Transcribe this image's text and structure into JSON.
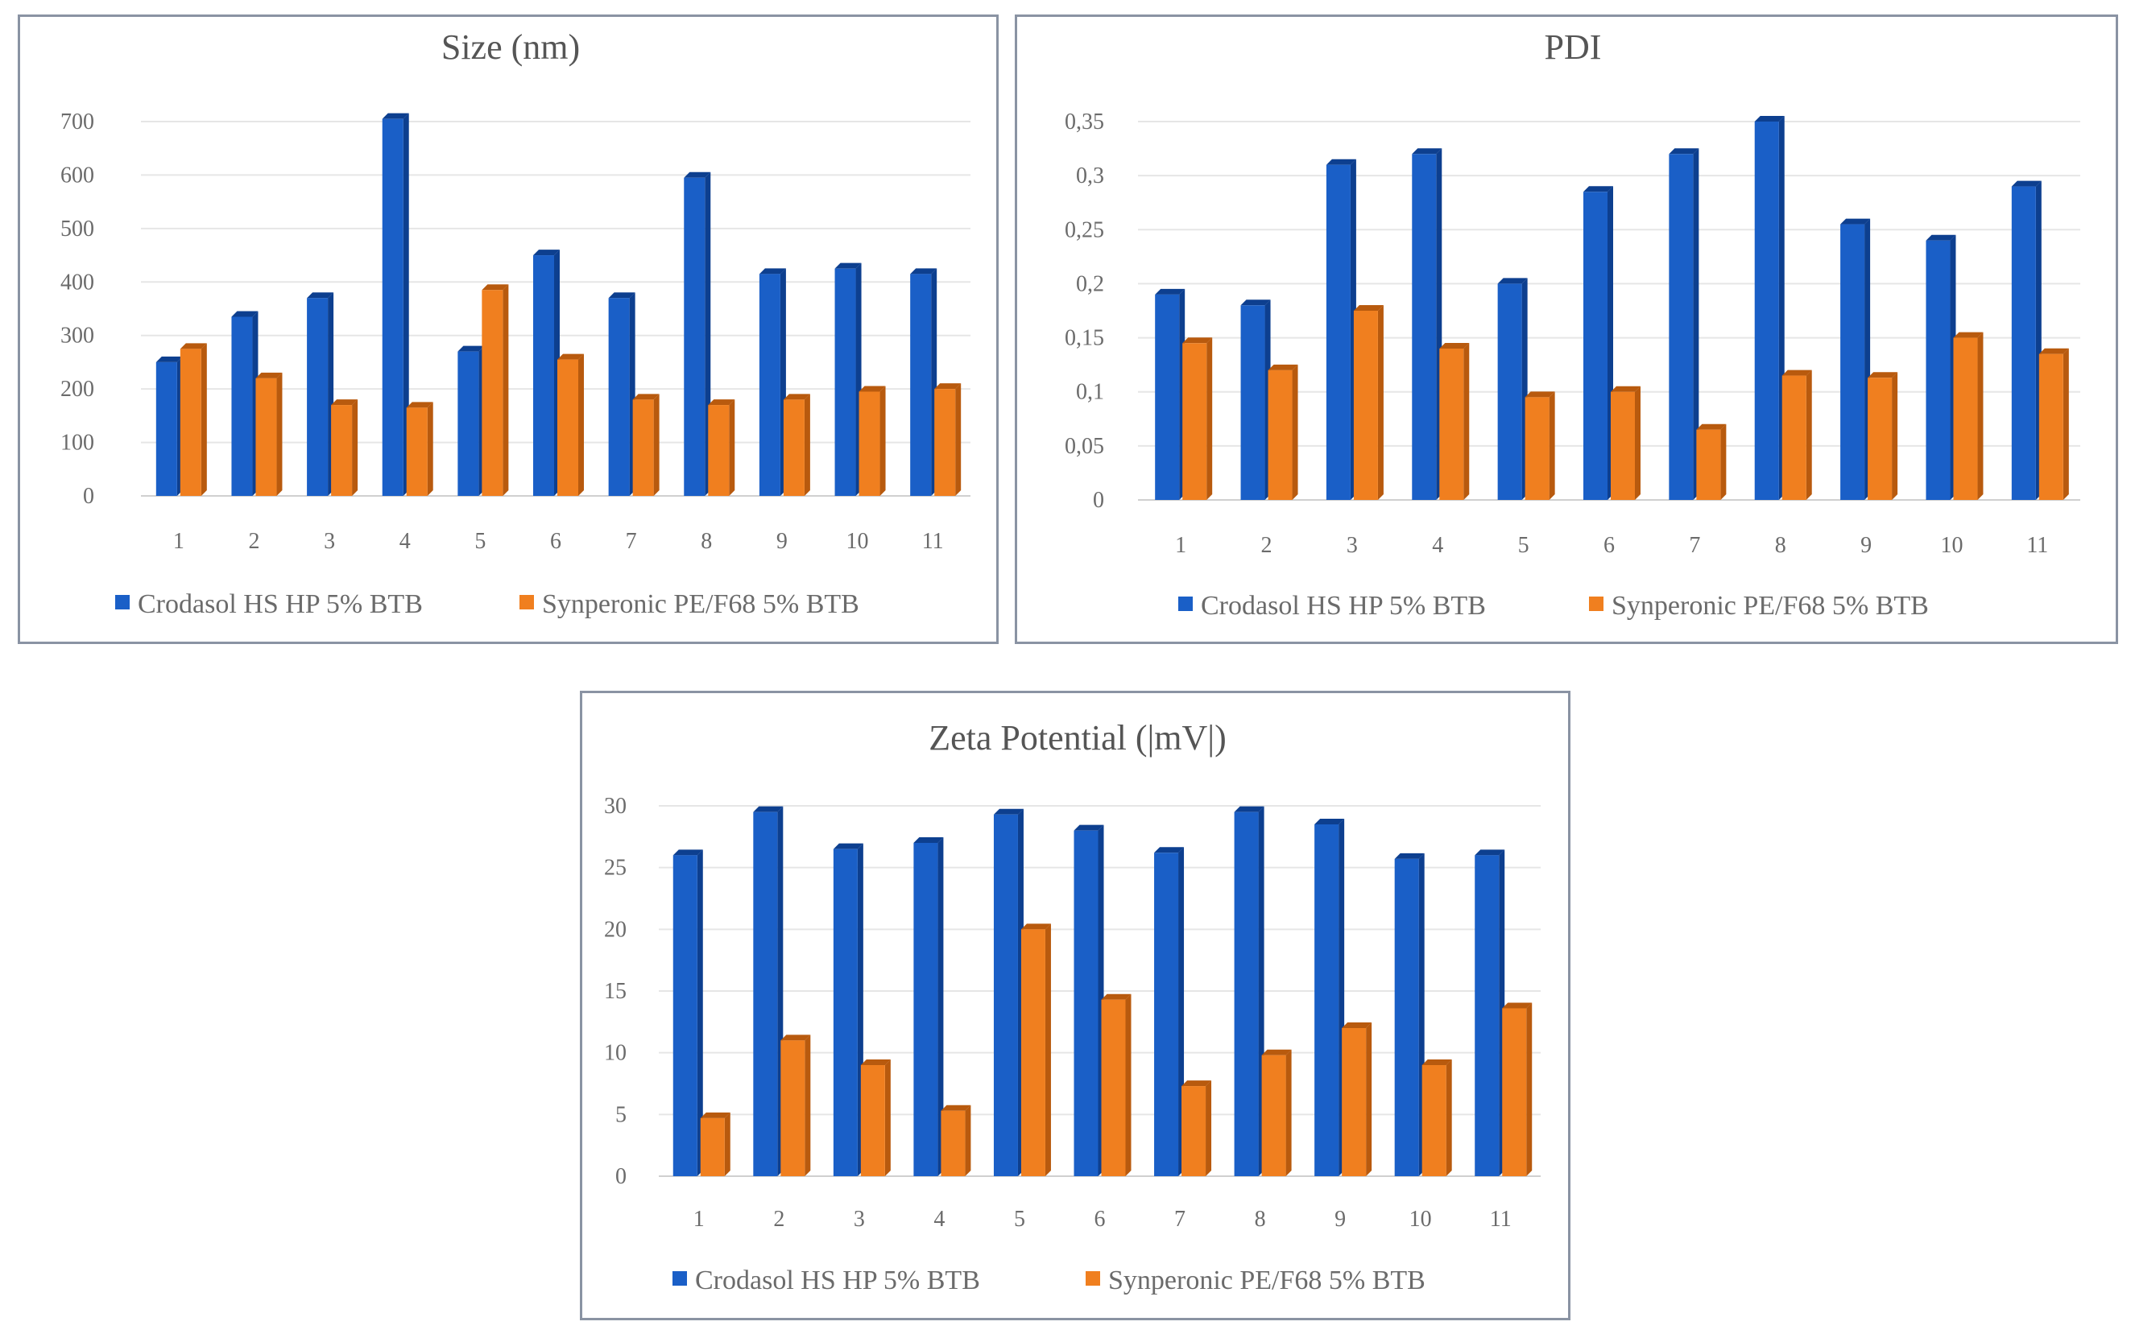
{
  "colors": {
    "series1": "#1a5fc7",
    "series1_side": "#0d3f8f",
    "series2": "#f07f1f",
    "series2_side": "#b85a0e"
  },
  "chart_data": [
    {
      "type": "bar",
      "title": "Size (nm)",
      "xlabel": "",
      "ylabel": "",
      "categories": [
        "1",
        "2",
        "3",
        "4",
        "5",
        "6",
        "7",
        "8",
        "9",
        "10",
        "11"
      ],
      "ylim": [
        0,
        700
      ],
      "yticks": [
        "0",
        "100",
        "200",
        "300",
        "400",
        "500",
        "600",
        "700"
      ],
      "ytick_values": [
        0,
        100,
        200,
        300,
        400,
        500,
        600,
        700
      ],
      "grid": true,
      "legend": "bottom",
      "series": [
        {
          "name": "Crodasol HS HP 5% BTB",
          "values": [
            250,
            335,
            370,
            705,
            270,
            450,
            370,
            595,
            415,
            425,
            415
          ]
        },
        {
          "name": "Synperonic PE/F68 5% BTB",
          "values": [
            275,
            220,
            170,
            165,
            385,
            255,
            180,
            170,
            180,
            195,
            200
          ]
        }
      ]
    },
    {
      "type": "bar",
      "title": "PDI",
      "xlabel": "",
      "ylabel": "",
      "categories": [
        "1",
        "2",
        "3",
        "4",
        "5",
        "6",
        "7",
        "8",
        "9",
        "10",
        "11"
      ],
      "ylim": [
        0,
        0.35
      ],
      "yticks": [
        "0",
        "0,05",
        "0,1",
        "0,15",
        "0,2",
        "0,25",
        "0,3",
        "0,35"
      ],
      "ytick_values": [
        0,
        0.05,
        0.1,
        0.15,
        0.2,
        0.25,
        0.3,
        0.35
      ],
      "grid": true,
      "legend": "bottom",
      "series": [
        {
          "name": "Crodasol HS HP 5% BTB",
          "values": [
            0.19,
            0.18,
            0.31,
            0.32,
            0.2,
            0.285,
            0.32,
            0.35,
            0.255,
            0.24,
            0.29
          ]
        },
        {
          "name": "Synperonic PE/F68 5% BTB",
          "values": [
            0.145,
            0.12,
            0.175,
            0.14,
            0.095,
            0.1,
            0.065,
            0.115,
            0.113,
            0.15,
            0.135
          ]
        }
      ]
    },
    {
      "type": "bar",
      "title": "Zeta Potential (|mV|)",
      "xlabel": "",
      "ylabel": "",
      "categories": [
        "1",
        "2",
        "3",
        "4",
        "5",
        "6",
        "7",
        "8",
        "9",
        "10",
        "11"
      ],
      "ylim": [
        0,
        30
      ],
      "yticks": [
        "0",
        "5",
        "10",
        "15",
        "20",
        "25",
        "30"
      ],
      "ytick_values": [
        0,
        5,
        10,
        15,
        20,
        25,
        30
      ],
      "grid": true,
      "legend": "bottom",
      "series": [
        {
          "name": "Crodasol HS HP 5% BTB",
          "values": [
            26,
            29.5,
            26.5,
            27,
            29.3,
            28,
            26.2,
            29.5,
            28.5,
            25.7,
            26
          ]
        },
        {
          "name": "Synperonic PE/F68 5% BTB",
          "values": [
            4.7,
            11,
            9,
            5.3,
            20,
            14.3,
            7.3,
            9.8,
            12,
            9,
            13.6
          ]
        }
      ]
    }
  ]
}
